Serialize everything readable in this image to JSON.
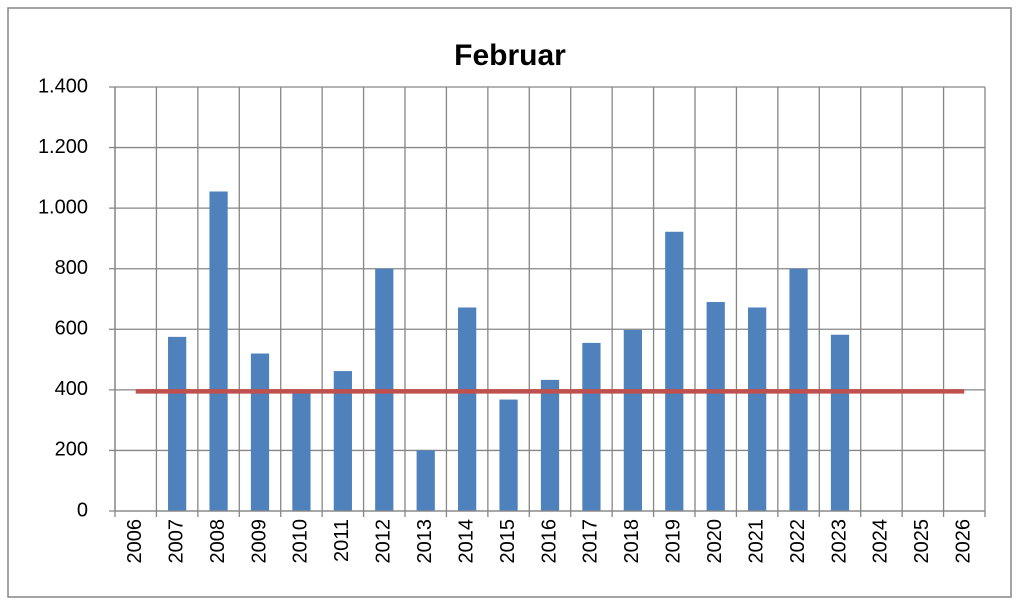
{
  "chart_data": {
    "type": "bar",
    "title": "Februar",
    "categories": [
      "2006",
      "2007",
      "2008",
      "2009",
      "2010",
      "2011",
      "2012",
      "2013",
      "2014",
      "2015",
      "2016",
      "2017",
      "2018",
      "2019",
      "2020",
      "2021",
      "2022",
      "2023",
      "2024",
      "2025",
      "2026"
    ],
    "series": [
      {
        "type": "bar",
        "color": "#4f81bd",
        "values": [
          null,
          575,
          1055,
          520,
          390,
          462,
          800,
          200,
          672,
          368,
          433,
          555,
          598,
          922,
          690,
          672,
          800,
          582,
          null,
          null,
          null
        ]
      },
      {
        "type": "line",
        "color": "#c0504d",
        "values": [
          395,
          395,
          395,
          395,
          395,
          395,
          395,
          395,
          395,
          395,
          395,
          395,
          395,
          395,
          395,
          395,
          395,
          395,
          395,
          395,
          395
        ]
      }
    ],
    "ylim": [
      0,
      1400
    ],
    "yticks": [
      0,
      200,
      400,
      600,
      800,
      {
        "value": 1000,
        "label": "1.000"
      },
      {
        "value": 1200,
        "label": "1.200"
      },
      {
        "value": 1400,
        "label": "1.400"
      }
    ],
    "grid": true
  }
}
